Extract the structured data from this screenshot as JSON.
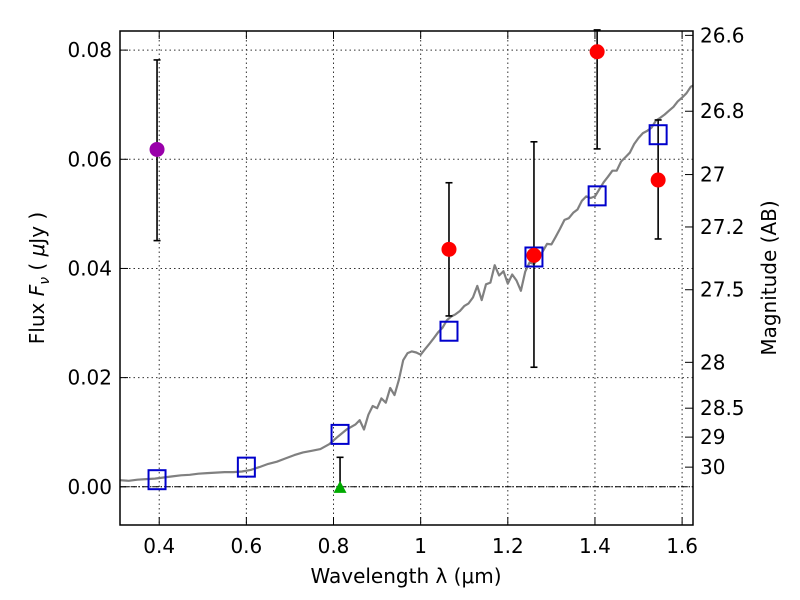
{
  "chart_data": {
    "type": "scatter",
    "xlabel": "Wavelength  λ (μm)",
    "ylabel_prefix": "Flux  ",
    "ylabel_symbol": "F",
    "ylabel_subscript": "ν",
    "ylabel_unit_open": "  ( ",
    "ylabel_mu": "μ",
    "ylabel_unit_rest": "Jy )",
    "y2label": "Magnitude (AB)",
    "xlim": [
      0.31,
      1.625
    ],
    "ylim": [
      -0.007,
      0.0835
    ],
    "x_ticks": [
      0.4,
      0.6,
      0.8,
      1.0,
      1.2,
      1.4,
      1.6
    ],
    "x_tick_labels": [
      "0.4",
      "0.6",
      "0.8",
      "1",
      "1.2",
      "1.4",
      "1.6"
    ],
    "y_ticks": [
      0.0,
      0.02,
      0.04,
      0.06,
      0.08
    ],
    "y_tick_labels": [
      "0.00",
      "0.02",
      "0.04",
      "0.06",
      "0.08"
    ],
    "mag_ticks": [
      {
        "label": "26.6",
        "flux": 0.0827
      },
      {
        "label": "26.8",
        "flux": 0.0688
      },
      {
        "label": "27",
        "flux": 0.0572
      },
      {
        "label": "27.2",
        "flux": 0.0476
      },
      {
        "label": "27.5",
        "flux": 0.0361
      },
      {
        "label": "28",
        "flux": 0.0228
      },
      {
        "label": "28.5",
        "flux": 0.0144
      },
      {
        "label": "29",
        "flux": 0.0091
      },
      {
        "label": "30",
        "flux": 0.0036
      }
    ],
    "reference_line_flux": 0.0,
    "series": [
      {
        "name": "model spectrum",
        "kind": "line",
        "color": "#808080",
        "x": [
          0.31,
          0.33,
          0.35,
          0.37,
          0.39,
          0.41,
          0.43,
          0.45,
          0.47,
          0.49,
          0.51,
          0.53,
          0.55,
          0.57,
          0.59,
          0.61,
          0.63,
          0.65,
          0.67,
          0.69,
          0.71,
          0.73,
          0.75,
          0.77,
          0.79,
          0.81,
          0.83,
          0.85,
          0.86,
          0.87,
          0.88,
          0.89,
          0.9,
          0.91,
          0.92,
          0.93,
          0.94,
          0.95,
          0.96,
          0.97,
          0.98,
          0.99,
          1.0,
          1.01,
          1.02,
          1.03,
          1.04,
          1.05,
          1.06,
          1.07,
          1.08,
          1.09,
          1.1,
          1.11,
          1.12,
          1.13,
          1.14,
          1.15,
          1.16,
          1.17,
          1.18,
          1.19,
          1.2,
          1.21,
          1.22,
          1.23,
          1.24,
          1.25,
          1.26,
          1.27,
          1.28,
          1.29,
          1.3,
          1.31,
          1.32,
          1.33,
          1.34,
          1.35,
          1.36,
          1.37,
          1.38,
          1.39,
          1.4,
          1.41,
          1.42,
          1.43,
          1.44,
          1.45,
          1.46,
          1.47,
          1.48,
          1.49,
          1.5,
          1.51,
          1.52,
          1.53,
          1.54,
          1.55,
          1.56,
          1.57,
          1.58,
          1.59,
          1.6,
          1.61,
          1.62,
          1.625
        ],
        "y": [
          0.0012,
          0.0011,
          0.0013,
          0.0014,
          0.0015,
          0.0017,
          0.0019,
          0.0021,
          0.0022,
          0.0024,
          0.0025,
          0.0026,
          0.0027,
          0.0027,
          0.0028,
          0.0031,
          0.0036,
          0.0042,
          0.0046,
          0.0052,
          0.0058,
          0.0063,
          0.0066,
          0.0069,
          0.0078,
          0.0092,
          0.0105,
          0.0114,
          0.0122,
          0.0105,
          0.0132,
          0.0148,
          0.0144,
          0.0162,
          0.0154,
          0.0181,
          0.0168,
          0.0196,
          0.0232,
          0.0245,
          0.0248,
          0.0246,
          0.0242,
          0.0252,
          0.0262,
          0.0272,
          0.0283,
          0.0291,
          0.0305,
          0.0312,
          0.0316,
          0.0322,
          0.0331,
          0.0336,
          0.0347,
          0.0368,
          0.0342,
          0.0371,
          0.0374,
          0.0406,
          0.0387,
          0.0395,
          0.0372,
          0.0389,
          0.0378,
          0.0359,
          0.0394,
          0.0411,
          0.0408,
          0.0419,
          0.0431,
          0.0445,
          0.0444,
          0.0458,
          0.0473,
          0.0489,
          0.0492,
          0.0502,
          0.0508,
          0.0524,
          0.0532,
          0.0529,
          0.0532,
          0.0545,
          0.0558,
          0.0568,
          0.0579,
          0.0579,
          0.0596,
          0.0604,
          0.0612,
          0.0628,
          0.0639,
          0.0648,
          0.0652,
          0.0658,
          0.0671,
          0.0676,
          0.0682,
          0.0689,
          0.0696,
          0.0706,
          0.0713,
          0.0721,
          0.0733,
          0.0735
        ]
      },
      {
        "name": "model photometry",
        "kind": "open-square",
        "color": "#0000cc",
        "x": [
          0.395,
          0.6,
          0.815,
          1.065,
          1.26,
          1.405,
          1.545
        ],
        "y": [
          0.0013,
          0.0036,
          0.0096,
          0.0285,
          0.0421,
          0.0533,
          0.0645
        ]
      },
      {
        "name": "observed (red)",
        "kind": "filled-circle",
        "color": "#ff0000",
        "x": [
          1.065,
          1.26,
          1.405,
          1.545
        ],
        "y": [
          0.0435,
          0.0424,
          0.0797,
          0.0562
        ],
        "err_low": [
          0.0313,
          0.0219,
          0.0619,
          0.0454
        ],
        "err_high": [
          0.0557,
          0.0632,
          0.0837,
          0.0672
        ]
      },
      {
        "name": "observed (purple)",
        "kind": "filled-circle",
        "color": "#9900aa",
        "x": [
          0.395
        ],
        "y": [
          0.0618
        ],
        "err_low": [
          0.0451
        ],
        "err_high": [
          0.0782
        ]
      },
      {
        "name": "upper limit (green)",
        "kind": "filled-triangle",
        "color": "#00aa00",
        "x": [
          0.815
        ],
        "y": [
          -0.0002
        ],
        "err_low": [
          -0.0002
        ],
        "err_high": [
          0.0054
        ]
      }
    ]
  }
}
